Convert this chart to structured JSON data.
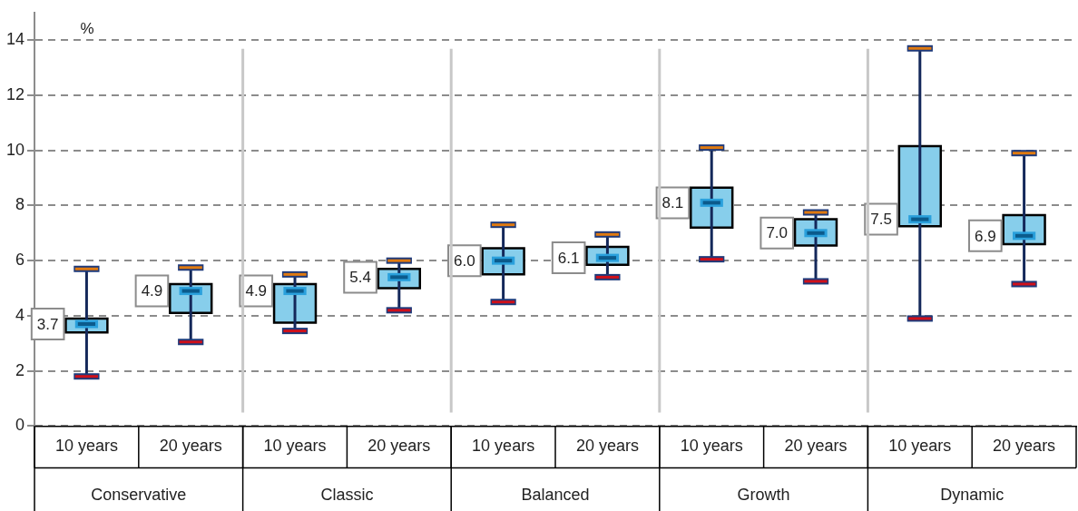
{
  "chart_data": {
    "type": "box",
    "ylabel": "%",
    "categories": [
      "10 years",
      "20 years",
      "10 years",
      "20 years",
      "10 years",
      "20 years",
      "10 years",
      "20 years",
      "10 years",
      "20 years"
    ],
    "annotations": [
      "Conservative",
      "Classic",
      "Balanced",
      "Growth",
      "Dynamic"
    ],
    "color": "#87ceeb",
    "boxes": [
      {
        "low": 1.8,
        "q1": 3.4,
        "median": 3.7,
        "q3": 3.9,
        "high": 5.7
      },
      {
        "low": 3.05,
        "q1": 4.1,
        "median": 4.9,
        "q3": 5.15,
        "high": 5.75
      },
      {
        "low": 3.45,
        "q1": 3.75,
        "median": 4.9,
        "q3": 5.15,
        "high": 5.5
      },
      {
        "low": 4.2,
        "q1": 5.0,
        "median": 5.4,
        "q3": 5.7,
        "high": 6.0
      },
      {
        "low": 4.5,
        "q1": 5.5,
        "median": 6.0,
        "q3": 6.45,
        "high": 7.3
      },
      {
        "low": 5.4,
        "q1": 5.85,
        "median": 6.1,
        "q3": 6.5,
        "high": 6.95
      },
      {
        "low": 6.05,
        "q1": 7.2,
        "median": 8.1,
        "q3": 8.65,
        "high": 10.1
      },
      {
        "low": 5.25,
        "q1": 6.55,
        "median": 7.0,
        "q3": 7.5,
        "high": 7.75
      },
      {
        "low": 3.9,
        "q1": 7.25,
        "median": 7.5,
        "q3": 10.15,
        "high": 13.7
      },
      {
        "low": 5.15,
        "q1": 6.6,
        "median": 6.9,
        "q3": 7.65,
        "high": 9.9
      }
    ],
    "value_labels": [
      "3.7",
      "4.9",
      "4.9",
      "5.4",
      "6.0",
      "6.1",
      "8.1",
      "7.0",
      "7.5",
      "6.9"
    ],
    "ylim": [
      0,
      15
    ],
    "yticks": [
      0,
      2,
      4,
      6,
      8,
      10,
      12,
      14
    ],
    "grid": "y",
    "legend": false
  }
}
